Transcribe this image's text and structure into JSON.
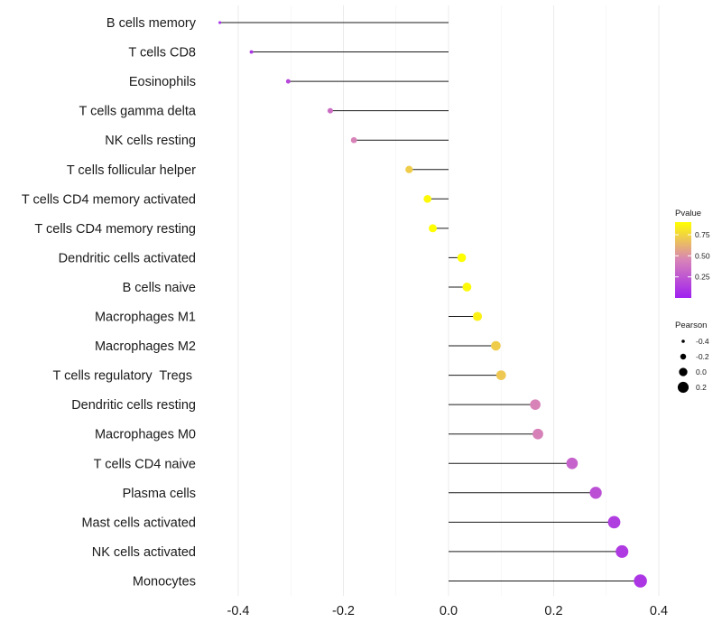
{
  "chart_data": {
    "type": "lollipop",
    "title": "",
    "xlabel": "",
    "ylabel": "",
    "xlim": [
      -0.48,
      0.42
    ],
    "x_ticks": [
      -0.4,
      -0.2,
      0.0,
      0.2,
      0.4
    ],
    "x_tick_labels": [
      "-0.4",
      "-0.2",
      "0.0",
      "0.2",
      "0.4"
    ],
    "grid": true,
    "points": [
      {
        "label": "B cells memory",
        "value": -0.435,
        "pvalue": 0.05
      },
      {
        "label": "T cells CD8",
        "value": -0.375,
        "pvalue": 0.1
      },
      {
        "label": "Eosinophils",
        "value": -0.305,
        "pvalue": 0.18
      },
      {
        "label": "T cells gamma delta",
        "value": -0.225,
        "pvalue": 0.35
      },
      {
        "label": "NK cells resting",
        "value": -0.18,
        "pvalue": 0.45
      },
      {
        "label": "T cells follicular helper",
        "value": -0.075,
        "pvalue": 0.72
      },
      {
        "label": "T cells CD4 memory activated",
        "value": -0.04,
        "pvalue": 0.88
      },
      {
        "label": "T cells CD4 memory resting",
        "value": -0.03,
        "pvalue": 0.9
      },
      {
        "label": "Dendritic cells activated",
        "value": 0.025,
        "pvalue": 0.9
      },
      {
        "label": "B cells naive",
        "value": 0.035,
        "pvalue": 0.88
      },
      {
        "label": "Macrophages M1",
        "value": 0.055,
        "pvalue": 0.85
      },
      {
        "label": "Macrophages M2",
        "value": 0.09,
        "pvalue": 0.72
      },
      {
        "label": "T cells regulatory  Tregs ",
        "value": 0.1,
        "pvalue": 0.7
      },
      {
        "label": "Dendritic cells resting",
        "value": 0.165,
        "pvalue": 0.45
      },
      {
        "label": "Macrophages M0",
        "value": 0.17,
        "pvalue": 0.44
      },
      {
        "label": "T cells CD4 naive",
        "value": 0.235,
        "pvalue": 0.3
      },
      {
        "label": "Plasma cells",
        "value": 0.28,
        "pvalue": 0.22
      },
      {
        "label": "Mast cells activated",
        "value": 0.315,
        "pvalue": 0.13
      },
      {
        "label": "NK cells activated",
        "value": 0.33,
        "pvalue": 0.12
      },
      {
        "label": "Monocytes",
        "value": 0.365,
        "pvalue": 0.1
      }
    ],
    "color_legend": {
      "title": "Pvalue",
      "low_color": "#a020f0",
      "mid_color": "#d883b8",
      "high_color": "#ffff00",
      "range": [
        0,
        0.9
      ],
      "ticks": [
        0.75,
        0.5,
        0.25
      ],
      "tick_labels": [
        "0.75",
        "0.50",
        "0.25"
      ]
    },
    "size_legend": {
      "title": "Pearson",
      "values": [
        -0.4,
        -0.2,
        0.0,
        0.2
      ],
      "labels": [
        "-0.4",
        "-0.2",
        "0.0",
        "0.2"
      ]
    }
  }
}
